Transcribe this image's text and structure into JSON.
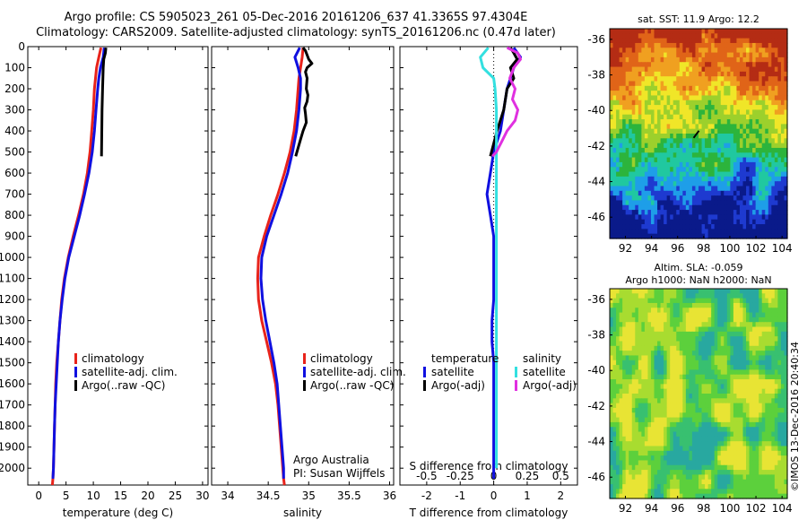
{
  "title_line1": "Argo profile: CS 5905023_261 05-Dec-2016 20161206_637 41.3365S 97.4304E",
  "title_line2": "Climatology: CARS2009. Satellite-adjusted climatology: synTS_20161206.nc (0.47d later)",
  "map1_title": "sat. SST: 11.9 Argo: 12.2",
  "map2_title_line1": "Altim. SLA: -0.059",
  "map2_title_line2": "Argo h1000: NaN h2000: NaN",
  "timestamp": "©IMOS 13-Dec-2016 20:40:34",
  "colors": {
    "climatology": "#e8231b",
    "satellite": "#1010e0",
    "argo": "#000000",
    "sal_satellite": "#33e0e0",
    "sal_argo": "#e030e0"
  },
  "chart_data": [
    {
      "type": "line",
      "xlabel": "temperature (deg C)",
      "xlim": [
        -2,
        31
      ],
      "xticks": [
        0,
        5,
        10,
        15,
        20,
        25,
        30
      ],
      "ylim": [
        0,
        2080
      ],
      "yticks": [
        0,
        100,
        200,
        300,
        400,
        500,
        600,
        700,
        800,
        900,
        1000,
        1100,
        1200,
        1300,
        1400,
        1500,
        1600,
        1700,
        1800,
        1900,
        2000
      ],
      "y_reversed": true,
      "legend": [
        "climatology",
        "satellite-adj. clim.",
        "Argo(..raw -QC)"
      ],
      "series": [
        {
          "name": "climatology",
          "color": "#e8231b",
          "x": [
            11.4,
            11.0,
            10.6,
            10.4,
            10.2,
            10.0,
            9.7,
            9.4,
            8.9,
            8.2,
            7.3,
            6.3,
            5.4,
            4.7,
            4.2,
            3.9,
            3.6,
            3.3,
            3.1,
            3.0,
            2.9,
            2.8,
            2.7,
            2.6,
            2.5
          ],
          "y": [
            5,
            50,
            100,
            150,
            200,
            300,
            400,
            500,
            600,
            700,
            800,
            900,
            1000,
            1100,
            1200,
            1300,
            1400,
            1500,
            1600,
            1700,
            1800,
            1900,
            2000,
            2050,
            2080
          ]
        },
        {
          "name": "satellite-adj. clim.",
          "color": "#1010e0",
          "x": [
            12.0,
            11.8,
            11.3,
            11.0,
            10.8,
            10.5,
            10.2,
            9.8,
            9.2,
            8.4,
            7.5,
            6.5,
            5.5,
            4.8,
            4.3,
            3.9,
            3.6,
            3.4,
            3.2,
            3.0,
            2.9,
            2.8,
            2.7,
            2.6
          ],
          "y": [
            5,
            50,
            100,
            150,
            200,
            300,
            400,
            500,
            600,
            700,
            800,
            900,
            1000,
            1100,
            1200,
            1300,
            1400,
            1500,
            1600,
            1700,
            1800,
            1900,
            2000,
            2050
          ]
        },
        {
          "name": "Argo(..raw -QC)",
          "color": "#000000",
          "x": [
            12.3,
            12.2,
            11.9,
            11.8,
            11.7,
            11.6,
            11.5
          ],
          "y": [
            5,
            30,
            60,
            100,
            200,
            300,
            520
          ]
        }
      ]
    },
    {
      "type": "line",
      "xlabel": "salinity",
      "xlim": [
        33.8,
        36.05
      ],
      "xticks": [
        34,
        34.5,
        35,
        35.5,
        36
      ],
      "ylim": [
        0,
        2080
      ],
      "y_reversed": true,
      "legend": [
        "climatology",
        "satellite-adj. clim.",
        "Argo(..raw -QC)"
      ],
      "annotations": [
        "Argo Australia",
        "PI: Susan Wijffels"
      ],
      "series": [
        {
          "name": "climatology",
          "color": "#e8231b",
          "x": [
            34.93,
            34.92,
            34.9,
            34.88,
            34.87,
            34.85,
            34.82,
            34.77,
            34.7,
            34.62,
            34.53,
            34.45,
            34.38,
            34.37,
            34.38,
            34.42,
            34.48,
            34.54,
            34.59,
            34.62,
            34.64,
            34.66,
            34.68,
            34.69,
            34.7
          ],
          "y": [
            5,
            50,
            100,
            150,
            200,
            300,
            400,
            500,
            600,
            700,
            800,
            900,
            1000,
            1100,
            1200,
            1300,
            1400,
            1500,
            1600,
            1700,
            1800,
            1900,
            2000,
            2050,
            2080
          ]
        },
        {
          "name": "satellite-adj. clim.",
          "color": "#1010e0",
          "x": [
            34.89,
            34.83,
            34.87,
            34.9,
            34.9,
            34.88,
            34.85,
            34.8,
            34.74,
            34.66,
            34.57,
            34.48,
            34.42,
            34.41,
            34.43,
            34.47,
            34.52,
            34.57,
            34.61,
            34.63,
            34.65,
            34.67,
            34.69,
            34.69
          ],
          "y": [
            5,
            50,
            100,
            150,
            200,
            300,
            400,
            500,
            600,
            700,
            800,
            900,
            1000,
            1100,
            1200,
            1300,
            1400,
            1500,
            1600,
            1700,
            1800,
            1900,
            2000,
            2050
          ]
        },
        {
          "name": "Argo(..raw -QC)",
          "color": "#000000",
          "x": [
            34.93,
            34.96,
            34.98,
            35.0,
            35.04,
            34.98,
            34.96,
            34.98,
            34.97,
            34.99,
            34.98,
            34.95,
            34.96,
            34.97,
            34.93,
            34.9,
            34.87,
            34.84
          ],
          "y": [
            5,
            20,
            40,
            60,
            80,
            100,
            120,
            150,
            200,
            230,
            260,
            290,
            320,
            360,
            400,
            440,
            480,
            520
          ]
        }
      ]
    },
    {
      "type": "line",
      "xlabel": "T difference from climatology",
      "xlabel_top": "S difference from climatology",
      "xlim": [
        -2.8,
        2.5
      ],
      "xticks": [
        -2,
        -1,
        0,
        1,
        2
      ],
      "xlim_top": [
        -0.7,
        0.625
      ],
      "xticks_top": [
        -0.5,
        -0.25,
        0,
        0.25,
        0.5
      ],
      "ylim": [
        0,
        2080
      ],
      "y_reversed": true,
      "legend_temperature": [
        "temperature",
        "satellite",
        "Argo(-adj)"
      ],
      "legend_salinity": [
        "salinity",
        "satellite",
        "Argo(-adj)"
      ],
      "series": [
        {
          "name": "temperature satellite",
          "color": "#1010e0",
          "axis": "bottom",
          "x": [
            0.6,
            0.8,
            0.6,
            0.5,
            0.4,
            0.3,
            0.2,
            0.0,
            -0.1,
            -0.2,
            -0.1,
            0.0,
            0.0,
            0.0,
            0.0,
            -0.05,
            -0.05,
            0.0,
            0.0,
            0.0,
            0.0,
            0.0,
            0.0,
            0.0
          ],
          "y": [
            5,
            50,
            100,
            150,
            200,
            300,
            400,
            500,
            600,
            700,
            800,
            900,
            1000,
            1100,
            1200,
            1300,
            1400,
            1500,
            1600,
            1700,
            1800,
            1900,
            2000,
            2050
          ]
        },
        {
          "name": "temperature Argo(-adj)",
          "color": "#000000",
          "axis": "bottom",
          "x": [
            0.5,
            0.6,
            0.7,
            0.5,
            0.6,
            0.4,
            0.3,
            0.1,
            -0.1
          ],
          "y": [
            5,
            30,
            60,
            100,
            150,
            200,
            300,
            400,
            520
          ]
        },
        {
          "name": "salinity satellite",
          "color": "#33e0e0",
          "axis": "top",
          "x": [
            -0.04,
            -0.1,
            -0.08,
            0.0,
            0.01,
            0.02,
            0.02,
            0.02,
            0.02,
            0.02,
            0.02,
            0.02,
            0.02,
            0.02,
            0.02,
            0.02,
            0.02,
            0.02,
            0.02,
            0.02,
            0.02,
            0.02,
            0.02
          ],
          "y": [
            5,
            50,
            100,
            150,
            200,
            300,
            400,
            500,
            600,
            700,
            800,
            900,
            1000,
            1100,
            1200,
            1300,
            1400,
            1500,
            1600,
            1700,
            1800,
            1900,
            2000
          ]
        },
        {
          "name": "salinity Argo(-adj)",
          "color": "#e030e0",
          "axis": "top",
          "x": [
            0.1,
            0.18,
            0.2,
            0.15,
            0.12,
            0.16,
            0.14,
            0.18,
            0.16,
            0.1,
            0.06,
            0.02,
            -0.01
          ],
          "y": [
            5,
            30,
            60,
            100,
            150,
            200,
            250,
            300,
            350,
            400,
            450,
            500,
            520
          ]
        }
      ]
    },
    {
      "type": "heatmap",
      "title": "sat. SST: 11.9 Argo: 12.2",
      "xlim": [
        90.8,
        104.4
      ],
      "xticks": [
        92,
        94,
        96,
        98,
        100,
        102,
        104
      ],
      "ylim": [
        -47.2,
        -35.4
      ],
      "yticks": [
        -36,
        -38,
        -40,
        -42,
        -44,
        -46
      ],
      "colorscale": [
        "#0a1a8a",
        "#1e3ad0",
        "#1e9ee8",
        "#20c8a0",
        "#2cb43c",
        "#9cd02c",
        "#f0e628",
        "#f0a020",
        "#e06418",
        "#b42c14"
      ],
      "marker": {
        "x": 97.43,
        "y": -41.34
      }
    },
    {
      "type": "heatmap",
      "title": "Altim. SLA: -0.059",
      "subtitle": "Argo h1000: NaN h2000: NaN",
      "xlim": [
        90.8,
        104.4
      ],
      "xticks": [
        92,
        94,
        96,
        98,
        100,
        102,
        104
      ],
      "ylim": [
        -47.2,
        -35.4
      ],
      "yticks": [
        -36,
        -38,
        -40,
        -42,
        -44,
        -46
      ],
      "colorscale": [
        "#28a8a0",
        "#38c070",
        "#5cd03c",
        "#a8dc30",
        "#e8e434"
      ]
    }
  ]
}
